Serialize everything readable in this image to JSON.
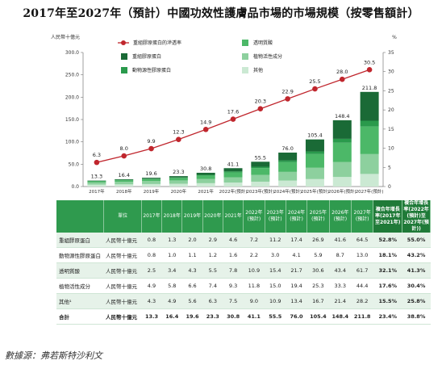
{
  "title": "2017年至2027年（預計）中國功效性護膚品市場的市場規模（按零售額計）",
  "source": "數據源：弗若斯特沙利文",
  "chart_data": {
    "type": "bar",
    "stacked": true,
    "years": [
      "2017年",
      "2018年",
      "2019年",
      "2020年",
      "2021年",
      "2022年(預計)",
      "2023年(預計)",
      "2024年(預計)",
      "2025年(預計)",
      "2026年(預計)",
      "2027年(預計)"
    ],
    "y_axis_left": {
      "label": "人民幣十億元",
      "ticks": [
        "0.0",
        "50.0",
        "100.0",
        "150.0",
        "200.0",
        "250.0",
        "300.0"
      ],
      "range": [
        0,
        300
      ]
    },
    "y_axis_right": {
      "label": "%",
      "ticks": [
        "0",
        "5",
        "10",
        "15",
        "20",
        "25",
        "30",
        "35"
      ],
      "range": [
        0,
        35
      ]
    },
    "series": [
      {
        "name": "重組膠原蛋白",
        "color": "#1a6a36",
        "values": [
          0.8,
          1.3,
          2.0,
          2.9,
          4.6,
          7.2,
          11.2,
          17.4,
          26.9,
          41.6,
          64.5
        ]
      },
      {
        "name": "動物源性膠原蛋白",
        "color": "#2a9a4c",
        "values": [
          0.8,
          1.0,
          1.1,
          1.2,
          1.6,
          2.2,
          3.0,
          4.1,
          5.9,
          8.7,
          13.0
        ]
      },
      {
        "name": "透明質酸",
        "color": "#4cb868",
        "values": [
          2.5,
          3.4,
          4.3,
          5.5,
          7.8,
          10.9,
          15.4,
          21.7,
          30.6,
          43.4,
          61.7
        ]
      },
      {
        "name": "植物活性成分",
        "color": "#8dd09e",
        "values": [
          4.9,
          5.8,
          6.6,
          7.4,
          9.3,
          11.8,
          15.0,
          19.4,
          25.3,
          33.3,
          44.4
        ]
      },
      {
        "name": "其他",
        "color": "#cbe9d3",
        "values": [
          4.3,
          4.9,
          5.6,
          6.3,
          7.5,
          9.0,
          10.9,
          13.4,
          16.7,
          21.4,
          28.2
        ]
      }
    ],
    "totals": [
      "13.3",
      "16.4",
      "19.6",
      "23.3",
      "30.8",
      "41.1",
      "55.5",
      "76.0",
      "105.4",
      "148.4",
      "211.8"
    ],
    "line": {
      "name": "重組膠原蛋白的滲透率",
      "color": "#c0262d",
      "values": [
        6.3,
        8.0,
        9.9,
        12.3,
        14.9,
        17.6,
        20.3,
        22.9,
        25.5,
        28.0,
        30.5
      ]
    }
  },
  "table": {
    "headers": [
      "",
      "單位",
      "2017年",
      "2018年",
      "2019年",
      "2020年",
      "2021年",
      "2022年(預計)",
      "2023年(預計)",
      "2024年(預計)",
      "2025年(預計)",
      "2026年(預計)",
      "2027年(預計)",
      "複合年增長率(2017年至2021年)",
      "複合年增長率(2022年(預計)至2027年(預計))"
    ],
    "rows": [
      {
        "cells": [
          "重組膠原蛋白",
          "人民幣十億元",
          "0.8",
          "1.3",
          "2.0",
          "2.9",
          "4.6",
          "7.2",
          "11.2",
          "17.4",
          "26.9",
          "41.6",
          "64.5",
          "52.8%",
          "55.0%"
        ]
      },
      {
        "cells": [
          "動物源性膠原蛋白",
          "人民幣十億元",
          "0.8",
          "1.0",
          "1.1",
          "1.2",
          "1.6",
          "2.2",
          "3.0",
          "4.1",
          "5.9",
          "8.7",
          "13.0",
          "18.1%",
          "43.2%"
        ]
      },
      {
        "cells": [
          "透明質酸",
          "人民幣十億元",
          "2.5",
          "3.4",
          "4.3",
          "5.5",
          "7.8",
          "10.9",
          "15.4",
          "21.7",
          "30.6",
          "43.4",
          "61.7",
          "32.1%",
          "41.3%"
        ]
      },
      {
        "cells": [
          "植物活性成分",
          "人民幣十億元",
          "4.9",
          "5.8",
          "6.6",
          "7.4",
          "9.3",
          "11.8",
          "15.0",
          "19.4",
          "25.3",
          "33.3",
          "44.4",
          "17.6%",
          "30.4%"
        ]
      },
      {
        "cells": [
          "其他¹",
          "人民幣十億元",
          "4.3",
          "4.9",
          "5.6",
          "6.3",
          "7.5",
          "9.0",
          "10.9",
          "13.4",
          "16.7",
          "21.4",
          "28.2",
          "15.5%",
          "25.8%"
        ]
      },
      {
        "cells": [
          "合計",
          "人民幣十億元",
          "13.3",
          "16.4",
          "19.6",
          "23.3",
          "30.8",
          "41.1",
          "55.5",
          "76.0",
          "105.4",
          "148.4",
          "211.8",
          "23.4%",
          "38.8%"
        ]
      }
    ]
  }
}
